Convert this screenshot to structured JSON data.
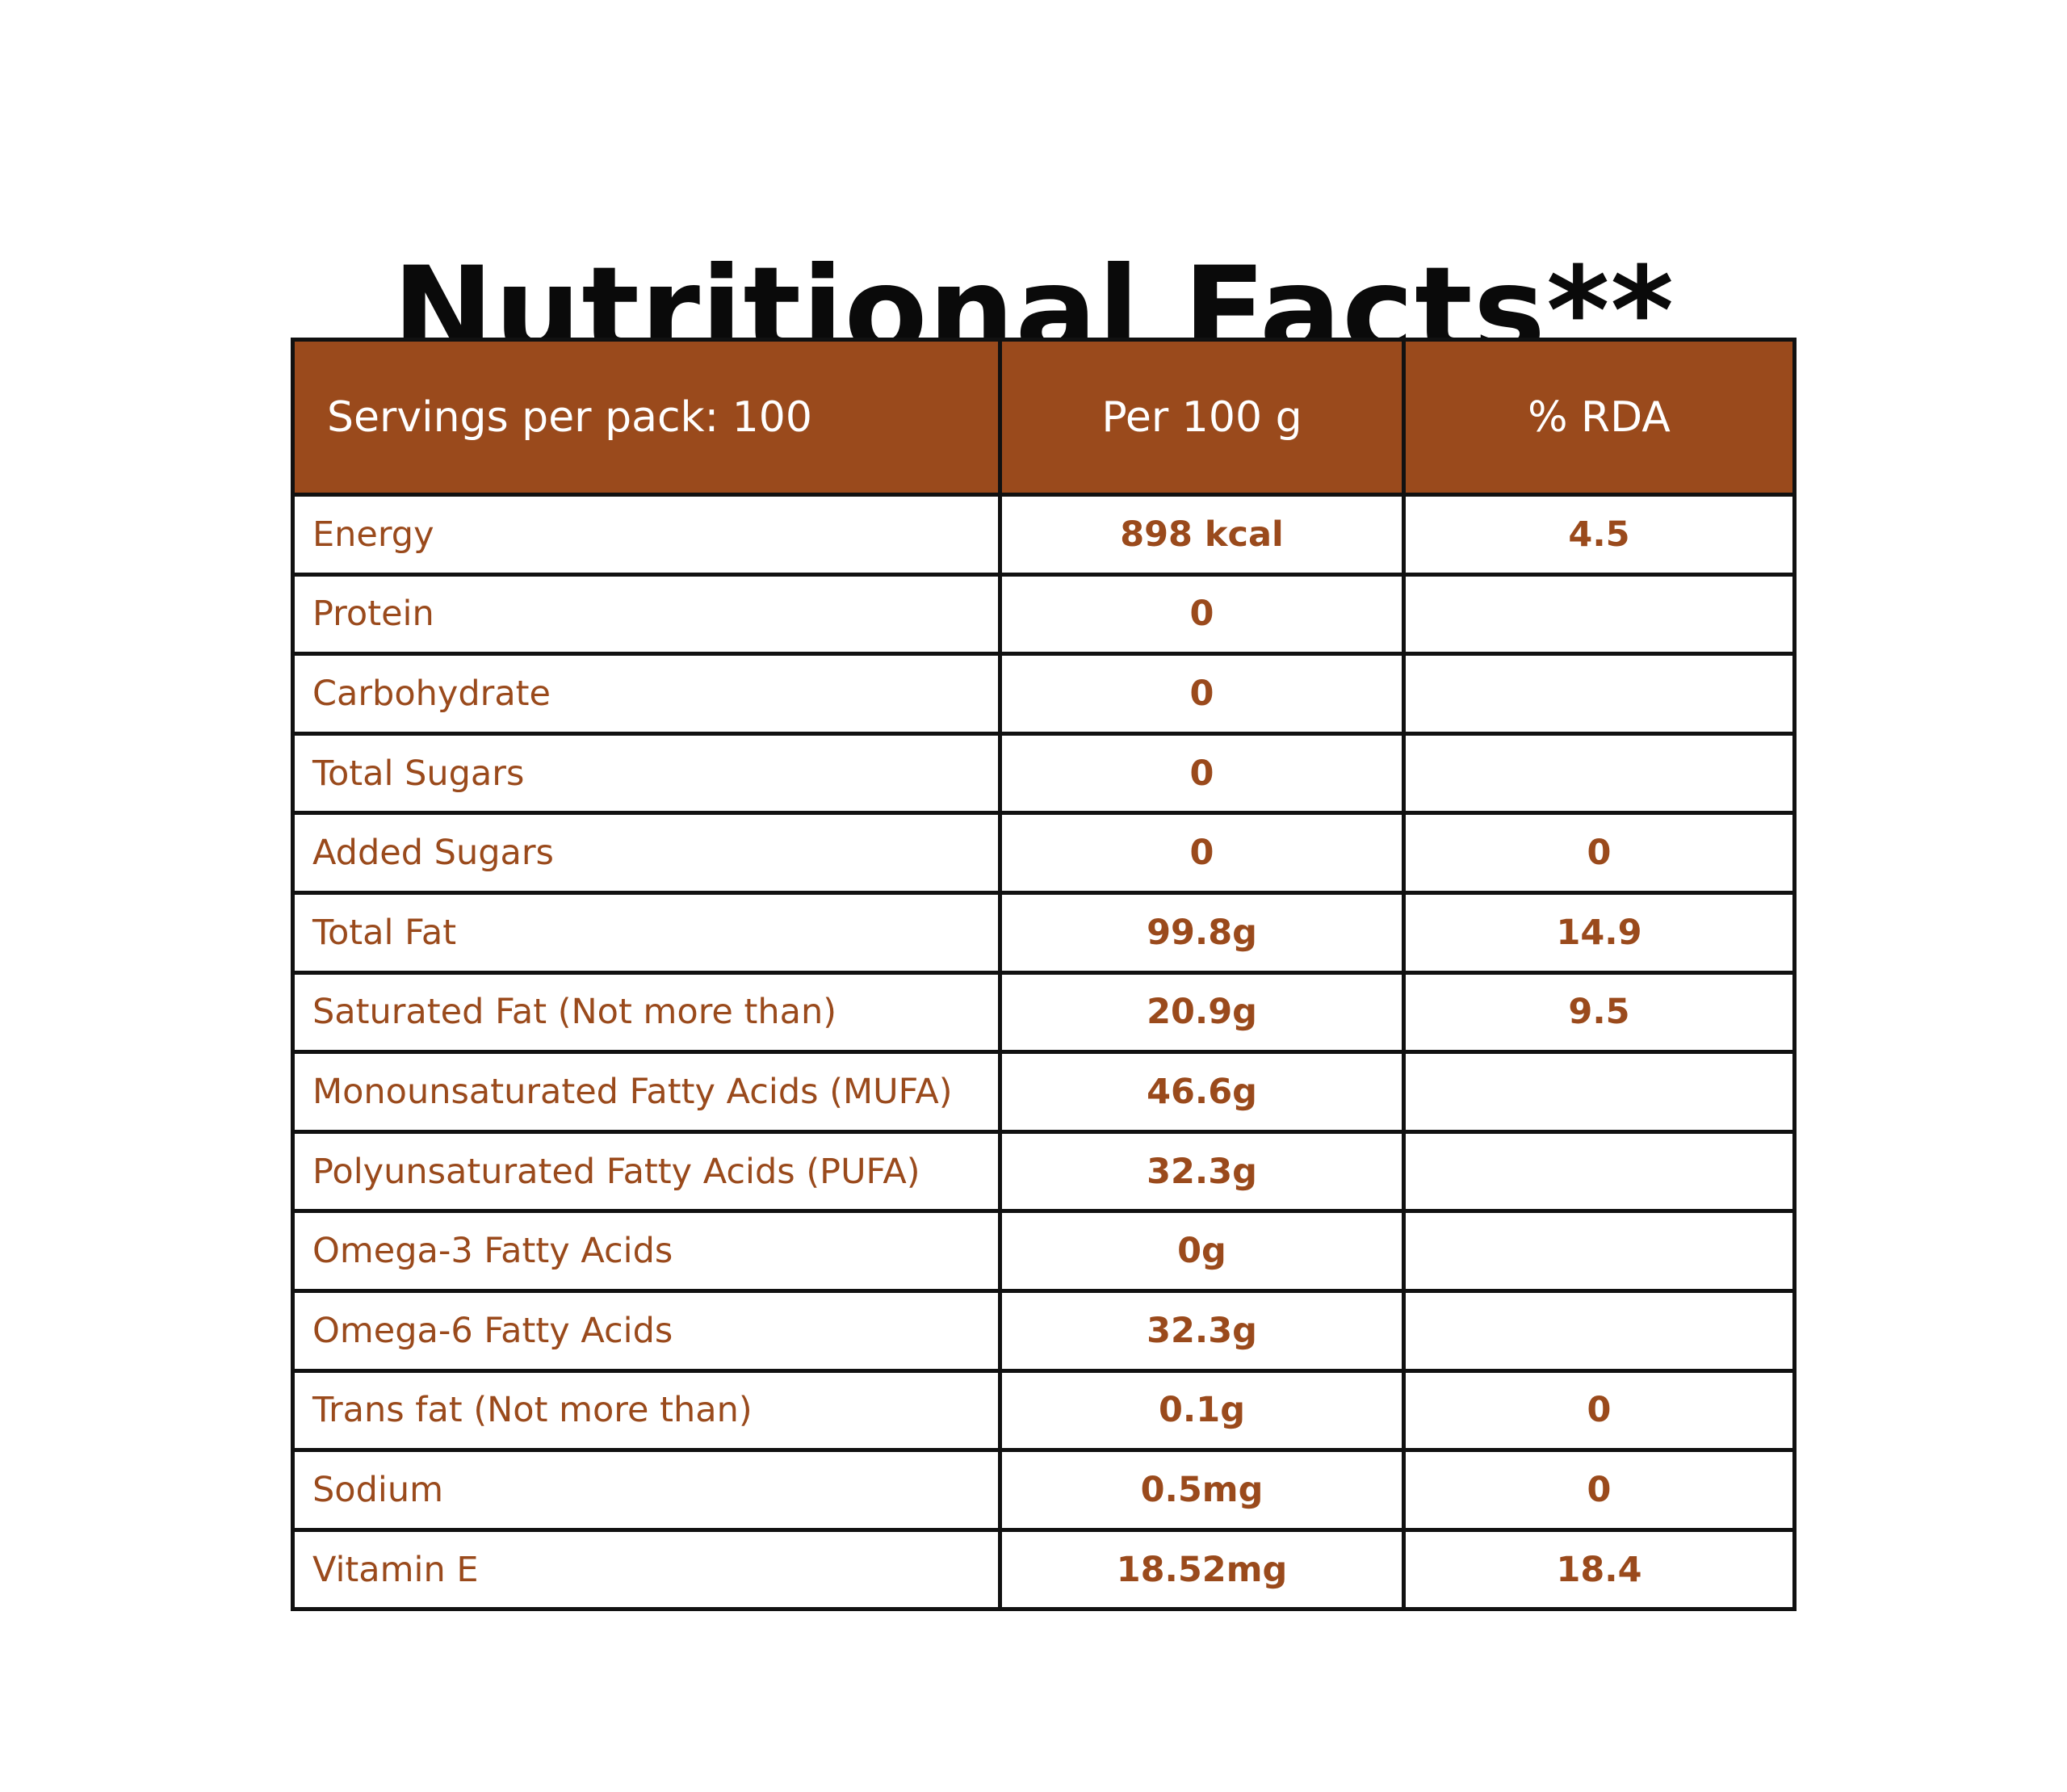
{
  "title": "Nutritional Facts**",
  "header": {
    "servings": "Servings per pack: 100",
    "per100": "Per 100 g",
    "rda": "% RDA"
  },
  "rows": [
    {
      "name": "Energy",
      "value": "898 kcal",
      "rda": "4.5"
    },
    {
      "name": "Protein",
      "value": "0",
      "rda": ""
    },
    {
      "name": "Carbohydrate",
      "value": "0",
      "rda": ""
    },
    {
      "name": "Total Sugars",
      "value": "0",
      "rda": ""
    },
    {
      "name": "Added Sugars",
      "value": "0",
      "rda": "0"
    },
    {
      "name": "Total Fat",
      "value": "99.8g",
      "rda": "14.9"
    },
    {
      "name": "Saturated Fat (Not more than)",
      "value": "20.9g",
      "rda": "9.5"
    },
    {
      "name": "Monounsaturated Fatty Acids (MUFA)",
      "value": "46.6g",
      "rda": ""
    },
    {
      "name": "Polyunsaturated Fatty Acids (PUFA)",
      "value": "32.3g",
      "rda": ""
    },
    {
      "name": "Omega-3 Fatty Acids",
      "value": "0g",
      "rda": ""
    },
    {
      "name": "Omega-6 Fatty Acids",
      "value": "32.3g",
      "rda": ""
    },
    {
      "name": "Trans fat (Not more than)",
      "value": "0.1g",
      "rda": "0"
    },
    {
      "name": "Sodium",
      "value": "0.5mg",
      "rda": "0"
    },
    {
      "name": "Vitamin E",
      "value": "18.52mg",
      "rda": "18.4"
    }
  ],
  "colors": {
    "accent": "#9a4a1c",
    "border": "#111111",
    "title": "#0a0a0a"
  }
}
